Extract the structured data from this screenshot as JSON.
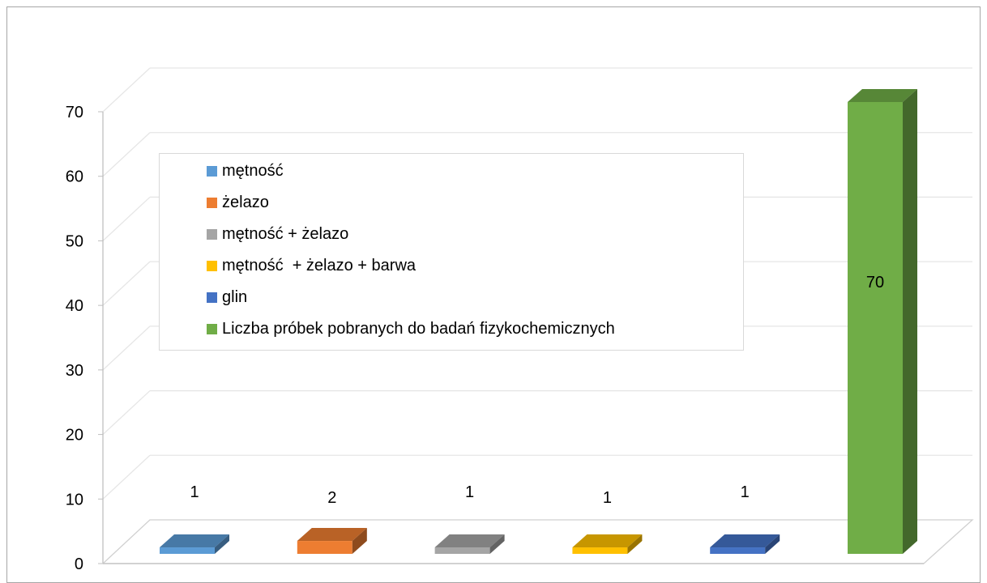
{
  "chart_data": {
    "type": "bar",
    "style": "3d-column",
    "categories": [
      "mętność",
      "żelazo",
      "mętność + żelazo",
      "mętność  + żelazo + barwa",
      "glin",
      "Liczba próbek pobranych do badań fizykochemicznych"
    ],
    "values": [
      1,
      2,
      1,
      1,
      1,
      70
    ],
    "data_labels": [
      "1",
      "2",
      "1",
      "1",
      "1",
      "70"
    ],
    "colors": [
      "#5b9bd5",
      "#ed7d31",
      "#a5a5a5",
      "#ffc000",
      "#4472c4",
      "#70ad47"
    ],
    "ylim": [
      0,
      70
    ],
    "yticks": [
      "0",
      "10",
      "20",
      "30",
      "40",
      "50",
      "60",
      "70"
    ],
    "grid": true,
    "legend_position": "top-left"
  }
}
